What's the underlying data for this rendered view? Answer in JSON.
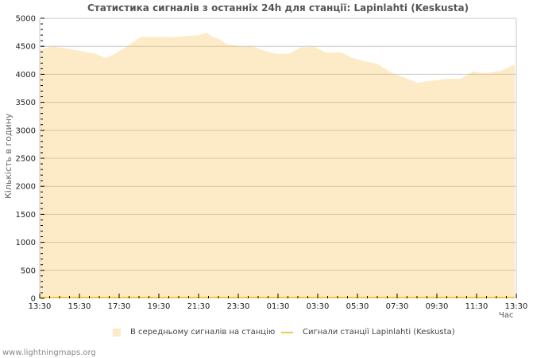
{
  "title": "Статистика сигналів з останніх 24h для станції: Lapinlahti (Keskusta)",
  "footer": "www.lightningmaps.org",
  "colors": {
    "area_fill": "#fdebc8",
    "station_line": "#f5c842",
    "grid": "#c8c8c8",
    "grid_on_area": "#d6c3a0",
    "axis": "#c8c8c8"
  },
  "legend": {
    "items": [
      {
        "label": "В середньому сигналів на станцію",
        "type": "area"
      },
      {
        "label": "Сигнали станції Lapinlahti (Keskusta)",
        "type": "line"
      }
    ]
  },
  "chart_data": {
    "type": "area",
    "title": "Статистика сигналів з останніх 24h для станції: Lapinlahti (Keskusta)",
    "xlabel": "Час",
    "ylabel": "Кількість в годину",
    "ylim": [
      0,
      5000
    ],
    "yticks": [
      0,
      500,
      1000,
      1500,
      2000,
      2500,
      3000,
      3500,
      4000,
      4500,
      5000
    ],
    "xticks": [
      "13:30",
      "15:30",
      "17:30",
      "19:30",
      "21:30",
      "23:30",
      "01:30",
      "03:30",
      "05:30",
      "07:30",
      "09:30",
      "11:30",
      "13:30"
    ],
    "grid": true,
    "legend_position": "bottom",
    "series": [
      {
        "name": "В середньому сигналів на станцію",
        "kind": "area",
        "x_hours": [
          0.08,
          0.6,
          1.2,
          2.0,
          2.8,
          3.3,
          3.8,
          4.4,
          5.1,
          6.0,
          6.6,
          7.6,
          8.0,
          8.4,
          8.7,
          9.1,
          9.4,
          10.1,
          10.8,
          11.2,
          12.0,
          12.6,
          13.1,
          13.8,
          14.0,
          14.4,
          15.2,
          15.7,
          16.4,
          17.0,
          17.8,
          18.4,
          19.0,
          19.8,
          20.6,
          21.2,
          21.8,
          22.4,
          23.2,
          23.8
        ],
        "values": [
          4440,
          4500,
          4470,
          4420,
          4370,
          4290,
          4370,
          4500,
          4670,
          4670,
          4660,
          4690,
          4700,
          4740,
          4670,
          4620,
          4540,
          4500,
          4490,
          4430,
          4360,
          4370,
          4480,
          4490,
          4460,
          4390,
          4390,
          4300,
          4230,
          4190,
          4010,
          3940,
          3850,
          3890,
          3920,
          3920,
          4050,
          4020,
          4060,
          4160
        ]
      },
      {
        "name": "Сигнали станції Lapinlahti (Keskusta)",
        "kind": "line",
        "x_hours": [
          0,
          24
        ],
        "values": [
          0,
          0
        ]
      }
    ]
  }
}
